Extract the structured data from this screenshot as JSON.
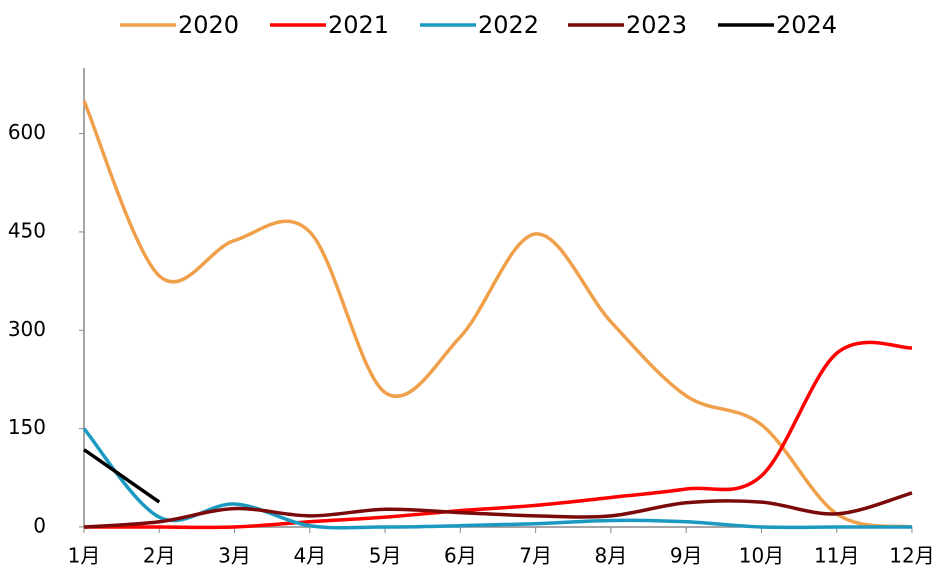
{
  "chart_data": {
    "type": "line",
    "categories": [
      "1月",
      "2月",
      "3月",
      "4月",
      "5月",
      "6月",
      "7月",
      "8月",
      "9月",
      "10月",
      "11月",
      "12月"
    ],
    "series": [
      {
        "name": "2020",
        "color": "#f0a04b",
        "values": [
          650,
          383,
          437,
          450,
          205,
          290,
          447,
          313,
          200,
          156,
          20,
          0
        ]
      },
      {
        "name": "2021",
        "color": "#ff0000",
        "values": [
          0,
          0,
          0,
          8,
          15,
          25,
          33,
          45,
          58,
          78,
          265,
          273
        ]
      },
      {
        "name": "2022",
        "color": "#1a9ac0",
        "values": [
          150,
          15,
          35,
          2,
          0,
          2,
          5,
          10,
          8,
          0,
          0,
          0
        ]
      },
      {
        "name": "2023",
        "color": "#7b0a0a",
        "values": [
          0,
          8,
          28,
          17,
          27,
          22,
          17,
          17,
          37,
          38,
          20,
          52
        ]
      },
      {
        "name": "2024",
        "color": "#000000",
        "values": [
          118,
          38,
          null,
          null,
          null,
          null,
          null,
          null,
          null,
          null,
          null,
          null
        ]
      }
    ],
    "ylim": [
      0,
      700
    ],
    "yticks": [
      0,
      150,
      300,
      450,
      600
    ],
    "smooth": true
  }
}
